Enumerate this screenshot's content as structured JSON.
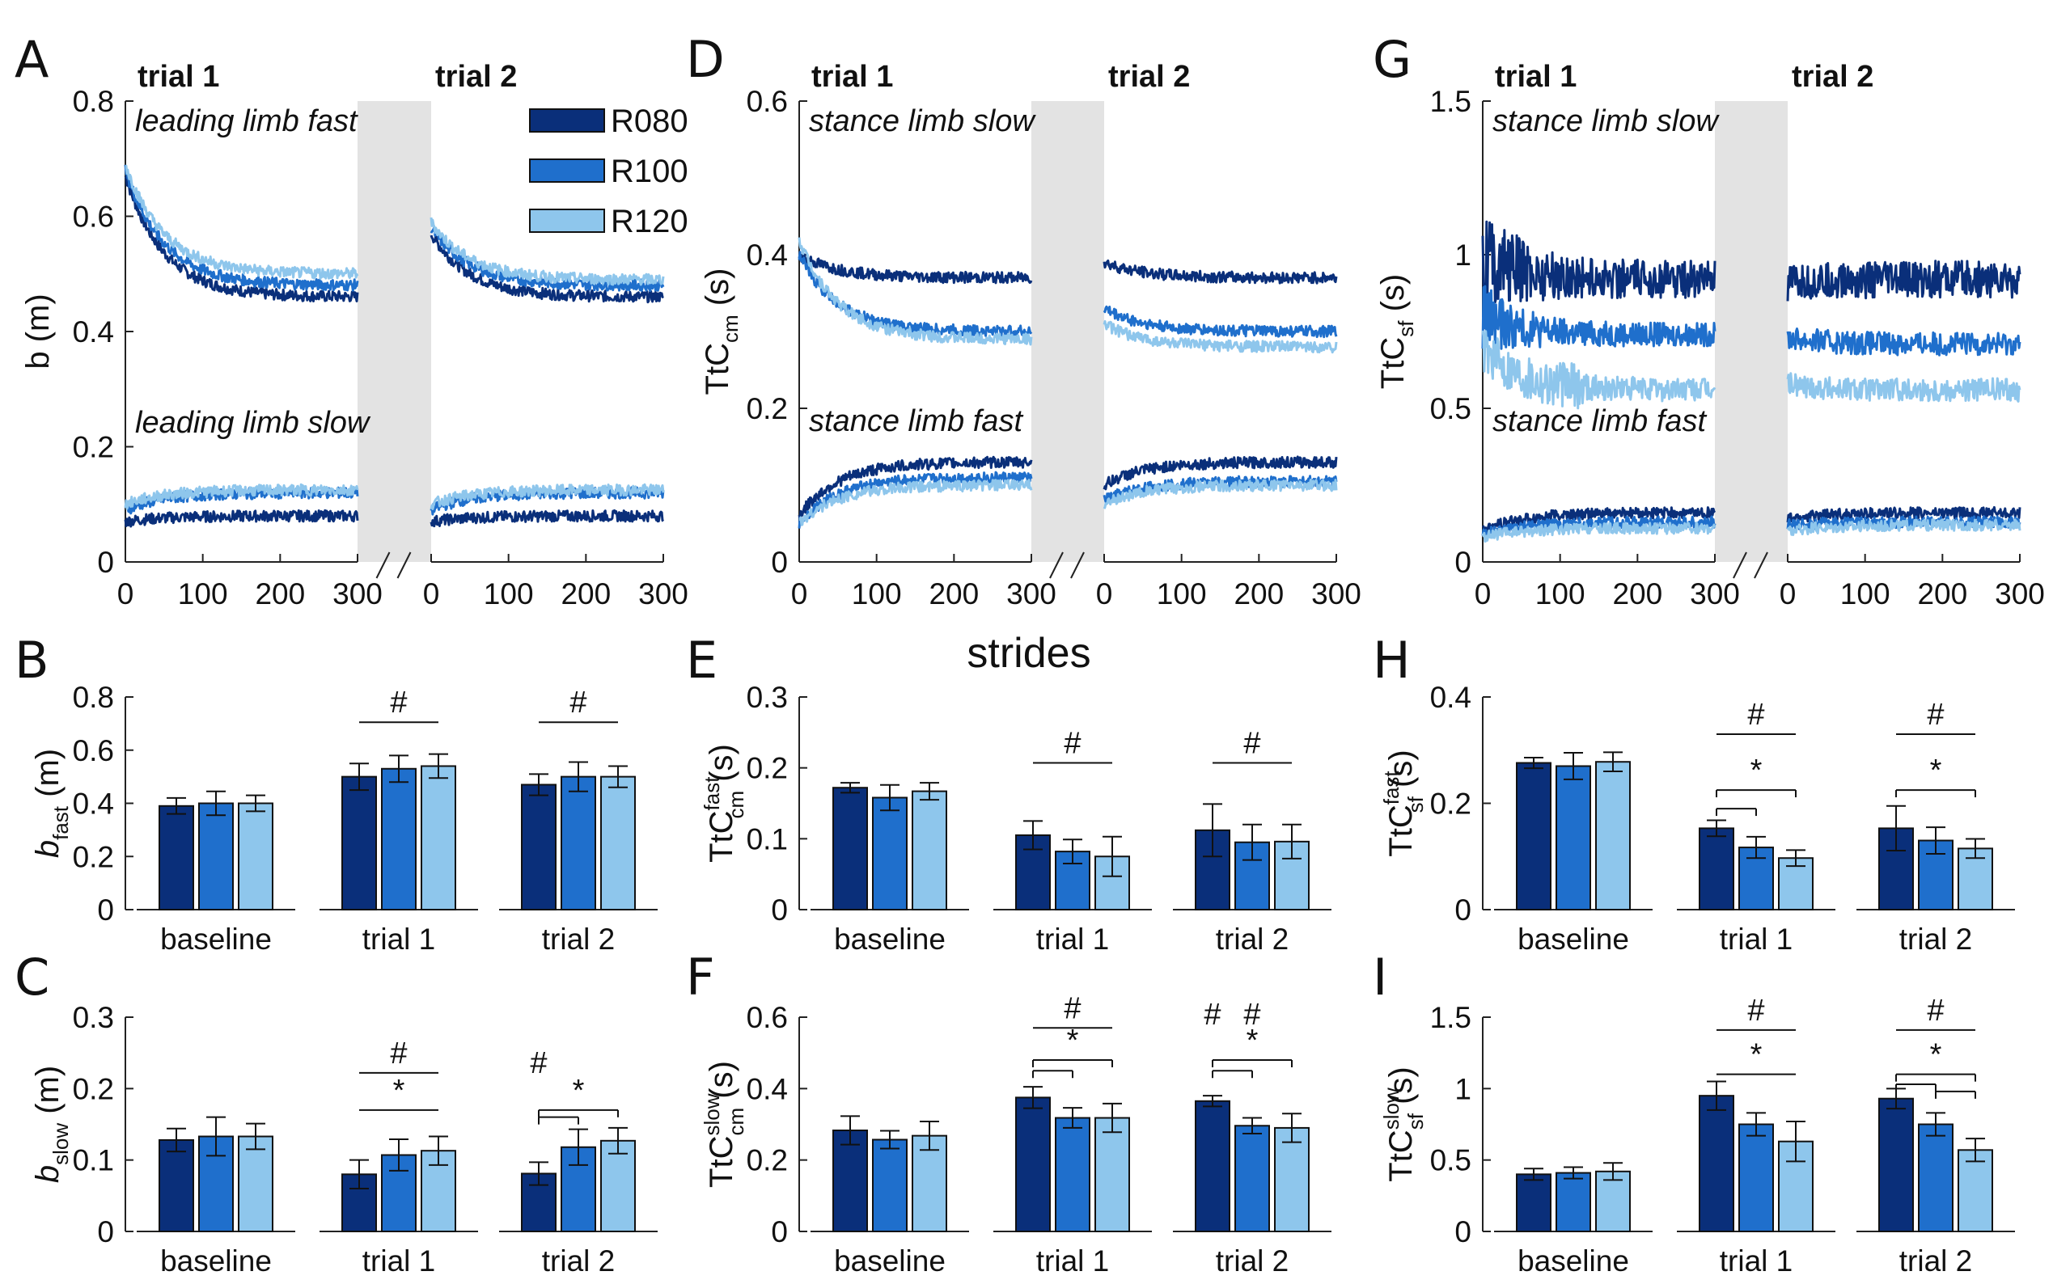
{
  "colors": {
    "R080": "#0a2f7a",
    "R100": "#1f6fcc",
    "R120": "#8ec6ec",
    "gap": "#e3e3e3"
  },
  "legend": [
    "R080",
    "R100",
    "R120"
  ],
  "xlabel": "strides",
  "chart_data": [
    {
      "panel": "A",
      "type": "line",
      "ylabel": "b (m)",
      "ylim": [
        0,
        0.8
      ],
      "yticks": [
        "0",
        "0.2",
        "0.4",
        "0.6",
        "0.8"
      ],
      "xticks": [
        "0",
        "100",
        "200",
        "300"
      ],
      "trials": [
        "trial 1",
        "trial 2"
      ],
      "annotations": [
        "leading limb fast",
        "leading limb slow"
      ],
      "series": [
        {
          "name": "R080",
          "upper": {
            "trial1": {
              "start": 0.67,
              "end": 0.46
            },
            "trial2": {
              "start": 0.57,
              "end": 0.46
            }
          },
          "lower": {
            "trial1": {
              "start": 0.07,
              "end": 0.08
            },
            "trial2": {
              "start": 0.07,
              "end": 0.08
            }
          }
        },
        {
          "name": "R100",
          "upper": {
            "trial1": {
              "start": 0.68,
              "end": 0.48
            },
            "trial2": {
              "start": 0.58,
              "end": 0.48
            }
          },
          "lower": {
            "trial1": {
              "start": 0.09,
              "end": 0.12
            },
            "trial2": {
              "start": 0.09,
              "end": 0.12
            }
          }
        },
        {
          "name": "R120",
          "upper": {
            "trial1": {
              "start": 0.69,
              "end": 0.5
            },
            "trial2": {
              "start": 0.59,
              "end": 0.49
            }
          },
          "lower": {
            "trial1": {
              "start": 0.1,
              "end": 0.125
            },
            "trial2": {
              "start": 0.1,
              "end": 0.125
            }
          }
        }
      ]
    },
    {
      "panel": "D",
      "type": "line",
      "ylabel": "TtC",
      "ylabel_sub": "cm",
      "ylabel_unit": " (s)",
      "ylim": [
        0,
        0.6
      ],
      "yticks": [
        "0",
        "0.2",
        "0.4",
        "0.6"
      ],
      "xticks": [
        "0",
        "100",
        "200",
        "300"
      ],
      "trials": [
        "trial 1",
        "trial 2"
      ],
      "annotations": [
        "stance limb slow",
        "stance limb fast"
      ],
      "series": [
        {
          "name": "R080",
          "upper": {
            "trial1": {
              "start": 0.4,
              "end": 0.37
            },
            "trial2": {
              "start": 0.39,
              "end": 0.37
            }
          },
          "lower": {
            "trial1": {
              "start": 0.06,
              "end": 0.13
            },
            "trial2": {
              "start": 0.1,
              "end": 0.13
            }
          }
        },
        {
          "name": "R100",
          "upper": {
            "trial1": {
              "start": 0.4,
              "end": 0.3
            },
            "trial2": {
              "start": 0.33,
              "end": 0.3
            }
          },
          "lower": {
            "trial1": {
              "start": 0.05,
              "end": 0.11
            },
            "trial2": {
              "start": 0.08,
              "end": 0.105
            }
          }
        },
        {
          "name": "R120",
          "upper": {
            "trial1": {
              "start": 0.42,
              "end": 0.29
            },
            "trial2": {
              "start": 0.31,
              "end": 0.28
            }
          },
          "lower": {
            "trial1": {
              "start": 0.05,
              "end": 0.1
            },
            "trial2": {
              "start": 0.075,
              "end": 0.1
            }
          }
        }
      ]
    },
    {
      "panel": "G",
      "type": "line",
      "ylabel": "TtC",
      "ylabel_sub": "sf",
      "ylabel_unit": " (s)",
      "ylim": [
        0,
        1.5
      ],
      "yticks": [
        "0",
        "0.5",
        "1",
        "1.5"
      ],
      "xticks": [
        "0",
        "100",
        "200",
        "300"
      ],
      "trials": [
        "trial 1",
        "trial 2"
      ],
      "annotations": [
        "stance limb slow",
        "stance limb fast"
      ],
      "series": [
        {
          "name": "R080",
          "upper": {
            "trial1": {
              "start": 1.0,
              "end": 0.92
            },
            "trial2": {
              "start": 0.9,
              "end": 0.92
            }
          },
          "lower": {
            "trial1": {
              "start": 0.1,
              "end": 0.16
            },
            "trial2": {
              "start": 0.14,
              "end": 0.16
            }
          }
        },
        {
          "name": "R100",
          "upper": {
            "trial1": {
              "start": 0.8,
              "end": 0.74
            },
            "trial2": {
              "start": 0.73,
              "end": 0.71
            }
          },
          "lower": {
            "trial1": {
              "start": 0.09,
              "end": 0.13
            },
            "trial2": {
              "start": 0.12,
              "end": 0.13
            }
          }
        },
        {
          "name": "R120",
          "upper": {
            "trial1": {
              "start": 0.7,
              "end": 0.56
            },
            "trial2": {
              "start": 0.58,
              "end": 0.56
            }
          },
          "lower": {
            "trial1": {
              "start": 0.08,
              "end": 0.11
            },
            "trial2": {
              "start": 0.1,
              "end": 0.12
            }
          }
        }
      ]
    },
    {
      "panel": "B",
      "type": "bar",
      "ylabel": "b",
      "ylabel_sub": "fast",
      "ylabel_unit": " (m)",
      "ylim": [
        0,
        0.8
      ],
      "yticks": [
        "0",
        "0.2",
        "0.4",
        "0.6",
        "0.8"
      ],
      "categories": [
        "baseline",
        "trial 1",
        "trial 2"
      ],
      "series": [
        {
          "name": "R080",
          "values": [
            0.39,
            0.5,
            0.47
          ],
          "errors": [
            0.03,
            0.05,
            0.04
          ]
        },
        {
          "name": "R100",
          "values": [
            0.4,
            0.53,
            0.5
          ],
          "errors": [
            0.045,
            0.05,
            0.055
          ]
        },
        {
          "name": "R120",
          "values": [
            0.4,
            0.54,
            0.5
          ],
          "errors": [
            0.03,
            0.045,
            0.04
          ]
        }
      ],
      "brackets": [
        {
          "group": 1,
          "from": 0,
          "to": 2,
          "label": "#",
          "level": 0.705
        },
        {
          "group": 2,
          "from": 0,
          "to": 2,
          "label": "#",
          "level": 0.705
        }
      ]
    },
    {
      "panel": "E",
      "type": "bar",
      "ylabel": "TtC",
      "ylabel_sub": "cm",
      "ylabel_sup": "fast",
      "ylabel_unit": " (s)",
      "ylim": [
        0,
        0.3
      ],
      "yticks": [
        "0",
        "0.1",
        "0.2",
        "0.3"
      ],
      "categories": [
        "baseline",
        "trial 1",
        "trial 2"
      ],
      "series": [
        {
          "name": "R080",
          "values": [
            0.172,
            0.105,
            0.112
          ],
          "errors": [
            0.007,
            0.02,
            0.037
          ]
        },
        {
          "name": "R100",
          "values": [
            0.158,
            0.082,
            0.095
          ],
          "errors": [
            0.018,
            0.017,
            0.025
          ]
        },
        {
          "name": "R120",
          "values": [
            0.167,
            0.075,
            0.096
          ],
          "errors": [
            0.012,
            0.028,
            0.024
          ]
        }
      ],
      "brackets": [
        {
          "group": 1,
          "from": 0,
          "to": 2,
          "label": "#",
          "level": 0.207
        },
        {
          "group": 2,
          "from": 0,
          "to": 2,
          "label": "#",
          "level": 0.207
        }
      ]
    },
    {
      "panel": "H",
      "type": "bar",
      "ylabel": "TtC",
      "ylabel_sub": "sf",
      "ylabel_sup": "fast",
      "ylabel_unit": " (s)",
      "ylim": [
        0,
        0.4
      ],
      "yticks": [
        "0",
        "0.2",
        "0.4"
      ],
      "categories": [
        "baseline",
        "trial 1",
        "trial 2"
      ],
      "series": [
        {
          "name": "R080",
          "values": [
            0.276,
            0.153,
            0.153
          ],
          "errors": [
            0.01,
            0.015,
            0.042
          ]
        },
        {
          "name": "R100",
          "values": [
            0.27,
            0.117,
            0.13
          ],
          "errors": [
            0.025,
            0.02,
            0.025
          ]
        },
        {
          "name": "R120",
          "values": [
            0.278,
            0.097,
            0.115
          ],
          "errors": [
            0.018,
            0.015,
            0.018
          ]
        }
      ],
      "brackets": [
        {
          "group": 1,
          "from": 0,
          "to": 2,
          "label": "#",
          "level": 0.33
        },
        {
          "group": 1,
          "from": 0,
          "to": 2,
          "label": "*",
          "level": 0.225,
          "tick": true
        },
        {
          "group": 1,
          "from": 0,
          "to": 1,
          "label": "",
          "level": 0.19,
          "tick": true
        },
        {
          "group": 2,
          "from": 0,
          "to": 2,
          "label": "#",
          "level": 0.33
        },
        {
          "group": 2,
          "from": 0,
          "to": 2,
          "label": "*",
          "level": 0.225,
          "tick": true
        }
      ]
    },
    {
      "panel": "C",
      "type": "bar",
      "ylabel": "b",
      "ylabel_sub": "slow",
      "ylabel_unit": " (m)",
      "ylim": [
        0,
        0.3
      ],
      "yticks": [
        "0",
        "0.1",
        "0.2",
        "0.3"
      ],
      "categories": [
        "baseline",
        "trial 1",
        "trial 2"
      ],
      "series": [
        {
          "name": "R080",
          "values": [
            0.128,
            0.08,
            0.081
          ],
          "errors": [
            0.016,
            0.02,
            0.016
          ]
        },
        {
          "name": "R100",
          "values": [
            0.133,
            0.107,
            0.118
          ],
          "errors": [
            0.027,
            0.022,
            0.025
          ]
        },
        {
          "name": "R120",
          "values": [
            0.133,
            0.113,
            0.127
          ],
          "errors": [
            0.018,
            0.02,
            0.018
          ]
        }
      ],
      "brackets": [
        {
          "group": 1,
          "from": 0,
          "to": 2,
          "label": "#",
          "level": 0.222
        },
        {
          "group": 1,
          "from": 0,
          "to": 2,
          "label": "*",
          "level": 0.17
        },
        {
          "group": 2,
          "from": 0,
          "to": 2,
          "label": "*",
          "level": 0.17,
          "tick": true
        },
        {
          "group": 2,
          "from": 0,
          "to": 1,
          "label": "",
          "level": 0.16,
          "tick": true
        }
      ],
      "extra_marks": [
        {
          "group": 2,
          "pos": -1,
          "label": "#",
          "level": 0.222
        }
      ]
    },
    {
      "panel": "F",
      "type": "bar",
      "ylabel": "TtC",
      "ylabel_sub": "cm",
      "ylabel_sup": "slow",
      "ylabel_unit": " (s)",
      "ylim": [
        0,
        0.6
      ],
      "yticks": [
        "0",
        "0.2",
        "0.4",
        "0.6"
      ],
      "categories": [
        "baseline",
        "trial 1",
        "trial 2"
      ],
      "series": [
        {
          "name": "R080",
          "values": [
            0.283,
            0.375,
            0.365
          ],
          "errors": [
            0.04,
            0.03,
            0.015
          ]
        },
        {
          "name": "R100",
          "values": [
            0.257,
            0.318,
            0.296
          ],
          "errors": [
            0.025,
            0.028,
            0.022
          ]
        },
        {
          "name": "R120",
          "values": [
            0.268,
            0.318,
            0.29
          ],
          "errors": [
            0.04,
            0.04,
            0.04
          ]
        }
      ],
      "brackets": [
        {
          "group": 1,
          "from": 0,
          "to": 2,
          "label": "#",
          "level": 0.57
        },
        {
          "group": 1,
          "from": 0,
          "to": 2,
          "label": "*",
          "level": 0.48,
          "tick": true
        },
        {
          "group": 1,
          "from": 0,
          "to": 1,
          "label": "",
          "level": 0.45,
          "tick": true
        },
        {
          "group": 2,
          "from": 0,
          "to": 2,
          "label": "*",
          "level": 0.48,
          "tick": true
        },
        {
          "group": 2,
          "from": 0,
          "to": 1,
          "label": "",
          "level": 0.45,
          "tick": true
        }
      ],
      "extra_marks": [
        {
          "group": 2,
          "pos": -1,
          "label": "#",
          "level": 0.58
        },
        {
          "group": 2,
          "pos": 0,
          "label": "#",
          "level": 0.58
        }
      ]
    },
    {
      "panel": "I",
      "type": "bar",
      "ylabel": "TtC",
      "ylabel_sub": "sf",
      "ylabel_sup": "slow",
      "ylabel_unit": " (s)",
      "ylim": [
        0,
        1.5
      ],
      "yticks": [
        "0",
        "0.5",
        "1",
        "1.5"
      ],
      "categories": [
        "baseline",
        "trial 1",
        "trial 2"
      ],
      "series": [
        {
          "name": "R080",
          "values": [
            0.4,
            0.95,
            0.93
          ],
          "errors": [
            0.04,
            0.1,
            0.07
          ]
        },
        {
          "name": "R100",
          "values": [
            0.41,
            0.75,
            0.75
          ],
          "errors": [
            0.04,
            0.08,
            0.08
          ]
        },
        {
          "name": "R120",
          "values": [
            0.42,
            0.63,
            0.57
          ],
          "errors": [
            0.06,
            0.14,
            0.08
          ]
        }
      ],
      "brackets": [
        {
          "group": 1,
          "from": 0,
          "to": 2,
          "label": "#",
          "level": 1.41
        },
        {
          "group": 1,
          "from": 0,
          "to": 2,
          "label": "*",
          "level": 1.1
        },
        {
          "group": 2,
          "from": 0,
          "to": 2,
          "label": "#",
          "level": 1.41
        },
        {
          "group": 2,
          "from": 0,
          "to": 2,
          "label": "*",
          "level": 1.1,
          "tick": true
        },
        {
          "group": 2,
          "from": 0,
          "to": 1,
          "label": "",
          "level": 1.03,
          "tick": true
        },
        {
          "group": 2,
          "from": 1,
          "to": 2,
          "label": "",
          "level": 0.98,
          "tick": true
        }
      ]
    }
  ]
}
